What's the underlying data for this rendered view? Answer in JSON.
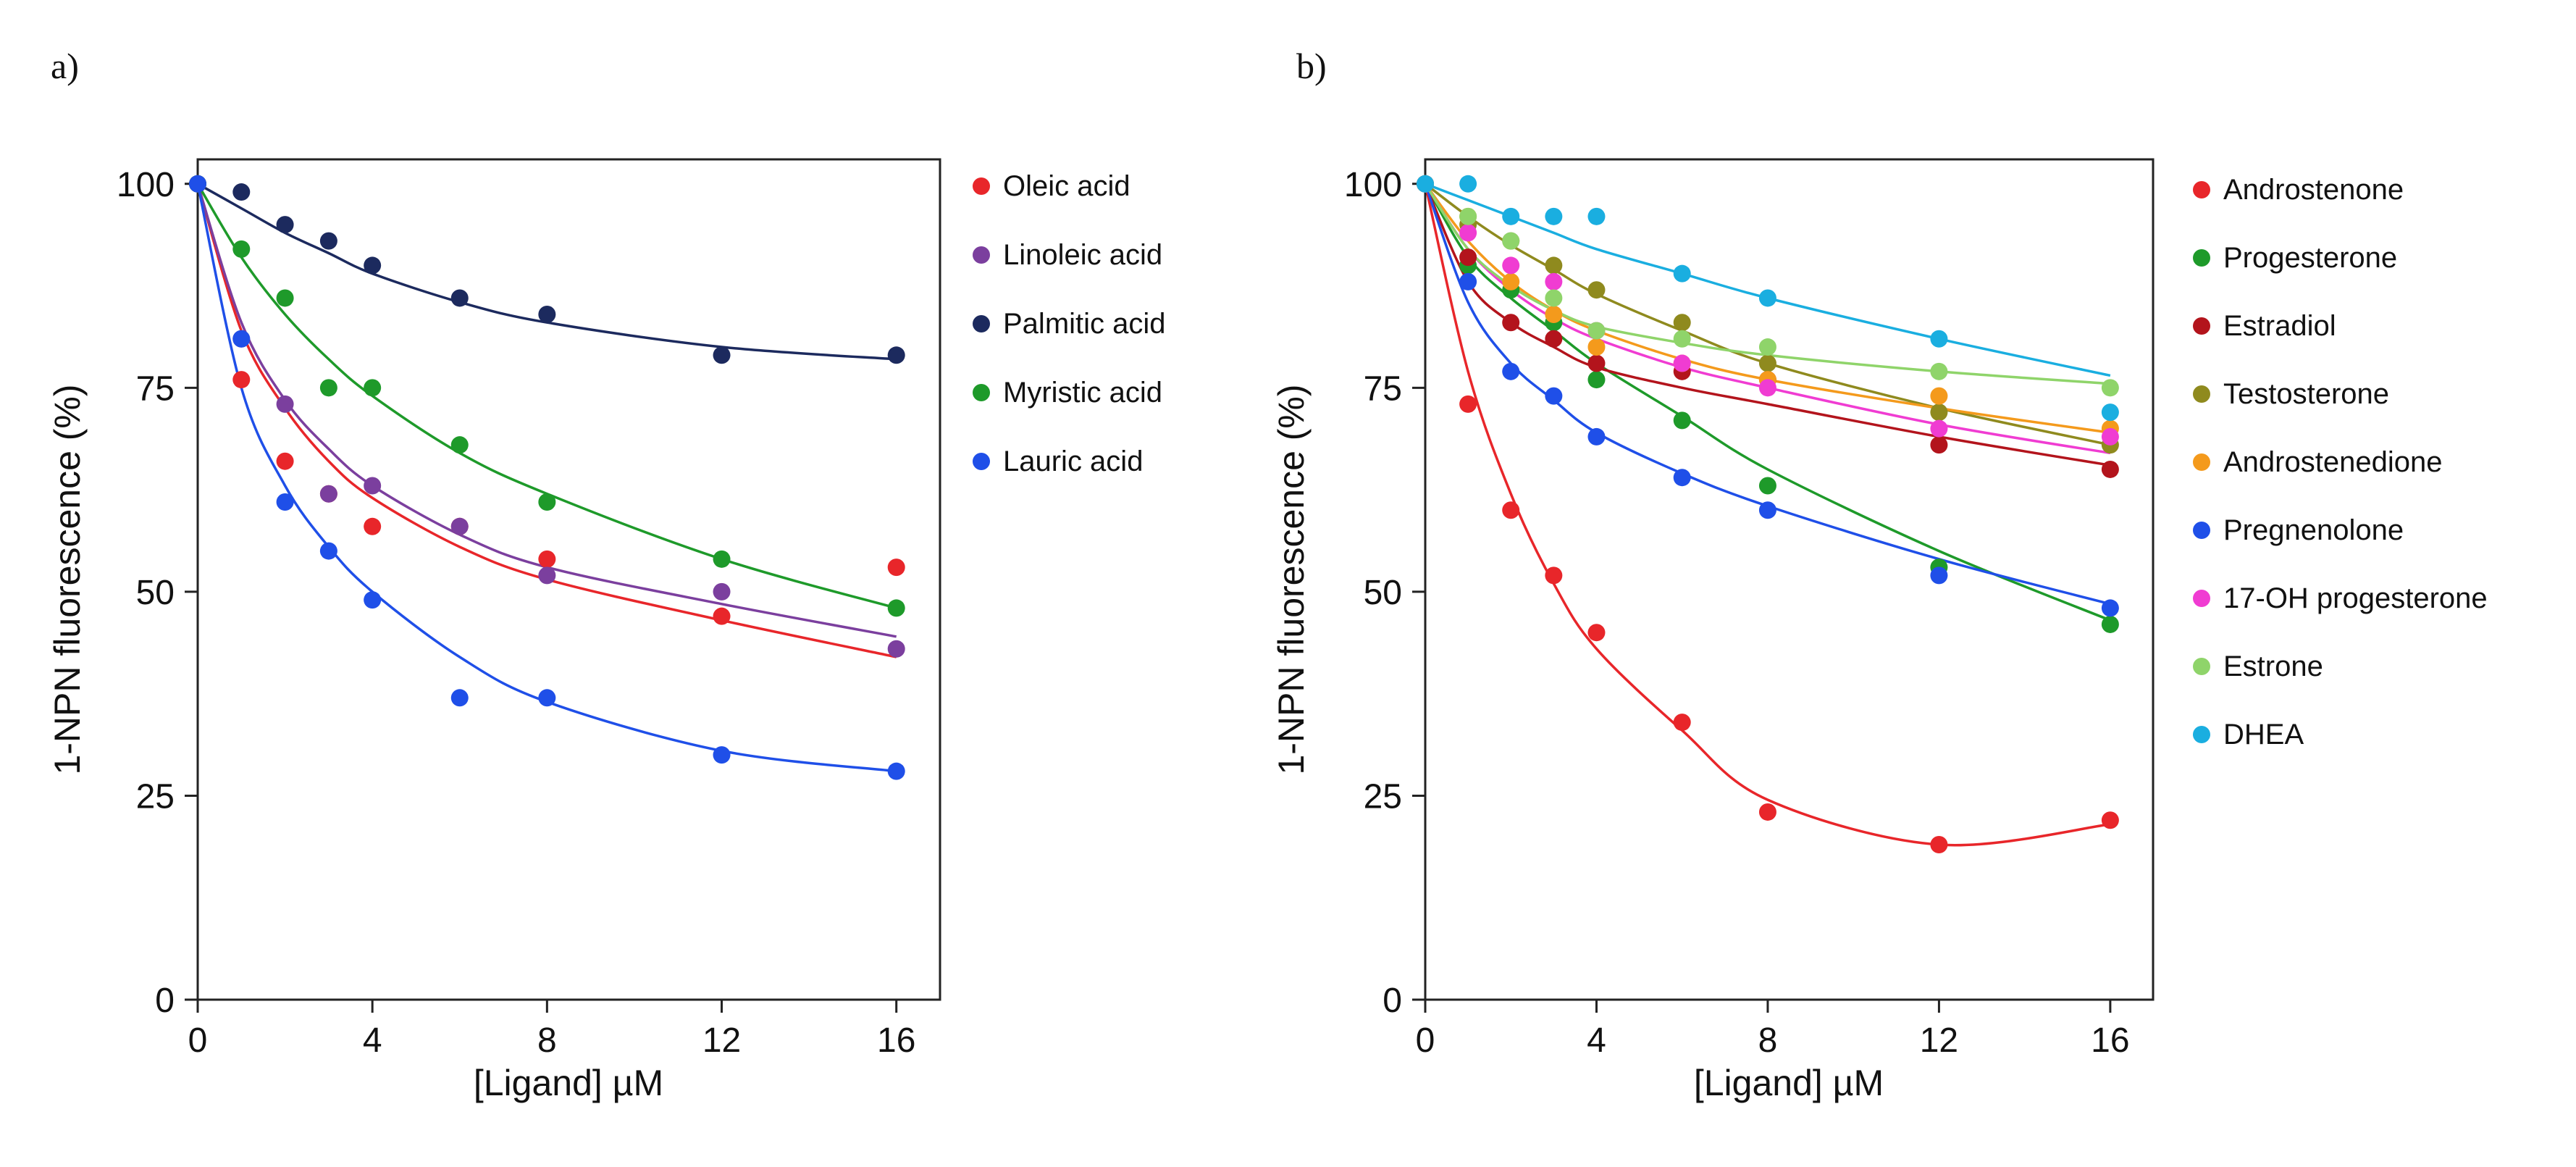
{
  "chart_data": [
    {
      "panel_label": "a)",
      "type": "scatter",
      "xlabel": "[Ligand] µM",
      "ylabel": "1-NPN fluorescence (%)",
      "xlim": [
        0,
        17
      ],
      "ylim": [
        0,
        103
      ],
      "xticks": [
        0,
        4,
        8,
        12,
        16
      ],
      "yticks": [
        0,
        25,
        50,
        75,
        100
      ],
      "legend_position": "right",
      "series": [
        {
          "name": "Oleic acid",
          "color": "#e8262a",
          "x": [
            0,
            1,
            2,
            3,
            4,
            6,
            8,
            12,
            16
          ],
          "y": [
            100,
            76,
            66,
            62,
            58,
            58,
            54,
            47,
            53
          ],
          "fit": [
            100,
            82,
            72.5,
            66,
            61.5,
            55.5,
            51.5,
            46.5,
            42
          ]
        },
        {
          "name": "Linoleic acid",
          "color": "#7b3f9e",
          "x": [
            0,
            1,
            2,
            3,
            4,
            6,
            8,
            12,
            16
          ],
          "y": [
            100,
            81,
            73,
            62,
            63,
            58,
            52,
            50,
            43
          ],
          "fit": [
            100,
            83,
            73.5,
            67.5,
            63,
            57,
            53,
            48.5,
            44.5
          ]
        },
        {
          "name": "Palmitic acid",
          "color": "#1c2a5e",
          "x": [
            0,
            1,
            2,
            3,
            4,
            6,
            8,
            12,
            16
          ],
          "y": [
            100,
            99,
            95,
            93,
            90,
            86,
            84,
            79,
            79
          ],
          "fit": [
            100,
            97,
            94,
            91.5,
            89,
            85.5,
            83,
            80,
            78.5
          ]
        },
        {
          "name": "Myristic acid",
          "color": "#1e9a2a",
          "x": [
            0,
            1,
            2,
            3,
            4,
            6,
            8,
            12,
            16
          ],
          "y": [
            100,
            92,
            86,
            75,
            75,
            68,
            61,
            54,
            48
          ],
          "fit": [
            100,
            91,
            84,
            78.5,
            74,
            67,
            62,
            54,
            48
          ]
        },
        {
          "name": "Lauric acid",
          "color": "#1f4fe8",
          "x": [
            0,
            1,
            2,
            3,
            4,
            6,
            8,
            12,
            16
          ],
          "y": [
            100,
            81,
            61,
            55,
            49,
            37,
            37,
            30,
            28
          ],
          "fit": [
            100,
            75,
            63,
            55.5,
            50,
            42,
            36.5,
            30.5,
            28
          ]
        }
      ]
    },
    {
      "panel_label": "b)",
      "type": "scatter",
      "xlabel": "[Ligand] µM",
      "ylabel": "1-NPN fluorescence (%)",
      "xlim": [
        0,
        17
      ],
      "ylim": [
        0,
        103
      ],
      "xticks": [
        0,
        4,
        8,
        12,
        16
      ],
      "yticks": [
        0,
        25,
        50,
        75,
        100
      ],
      "legend_position": "right",
      "series": [
        {
          "name": "Androstenone",
          "color": "#e8262a",
          "x": [
            0,
            1,
            2,
            3,
            4,
            6,
            8,
            12,
            16
          ],
          "y": [
            100,
            73,
            60,
            52,
            45,
            34,
            23,
            19,
            22
          ],
          "fit": [
            100,
            77,
            62,
            51,
            43,
            33,
            24.5,
            19,
            21.5
          ]
        },
        {
          "name": "Progesterone",
          "color": "#1e9a2a",
          "x": [
            0,
            1,
            2,
            3,
            4,
            6,
            8,
            12,
            16
          ],
          "y": [
            100,
            90,
            87,
            83,
            76,
            71,
            63,
            53,
            46
          ],
          "fit": [
            100,
            91,
            86,
            82,
            78,
            71.5,
            65,
            55,
            46.5
          ]
        },
        {
          "name": "Estradiol",
          "color": "#b3141c",
          "x": [
            0,
            1,
            2,
            3,
            4,
            6,
            8,
            12,
            16
          ],
          "y": [
            100,
            91,
            83,
            81,
            78,
            77,
            76,
            68,
            65
          ],
          "fit": [
            100,
            88,
            83,
            80,
            77.5,
            75,
            73,
            69,
            65.5
          ]
        },
        {
          "name": "Testosterone",
          "color": "#8f8a1e",
          "x": [
            0,
            1,
            2,
            3,
            4,
            6,
            8,
            12,
            16
          ],
          "y": [
            100,
            95,
            93,
            90,
            87,
            83,
            78,
            72,
            68
          ],
          "fit": [
            100,
            96,
            92.5,
            89.5,
            86.5,
            82,
            78,
            72.5,
            68
          ]
        },
        {
          "name": "Androstenedione",
          "color": "#f49a1c",
          "x": [
            0,
            1,
            2,
            3,
            4,
            6,
            8,
            12,
            16
          ],
          "y": [
            100,
            96,
            88,
            84,
            80,
            78,
            76,
            74,
            70
          ],
          "fit": [
            100,
            93,
            88,
            84.5,
            82,
            78.5,
            76,
            72.5,
            69.5
          ]
        },
        {
          "name": "Pregnenolone",
          "color": "#1f4fe8",
          "x": [
            0,
            1,
            2,
            3,
            4,
            6,
            8,
            12,
            16
          ],
          "y": [
            100,
            88,
            77,
            74,
            69,
            64,
            60,
            52,
            48
          ],
          "fit": [
            100,
            85.5,
            78,
            73.5,
            69.5,
            64.5,
            60.5,
            54,
            48.5
          ]
        },
        {
          "name": "17-OH progesterone",
          "color": "#f03cd2",
          "x": [
            0,
            1,
            2,
            3,
            4,
            6,
            8,
            12,
            16
          ],
          "y": [
            100,
            94,
            90,
            88,
            82,
            78,
            75,
            70,
            69
          ],
          "fit": [
            100,
            92,
            87,
            83.5,
            81,
            77.5,
            75,
            70.5,
            67
          ]
        },
        {
          "name": "Estrone",
          "color": "#8fd46a",
          "x": [
            0,
            1,
            2,
            3,
            4,
            6,
            8,
            12,
            16
          ],
          "y": [
            100,
            96,
            93,
            86,
            82,
            81,
            80,
            77,
            75
          ],
          "fit": [
            100,
            92,
            87.5,
            84.5,
            82.5,
            80.5,
            79,
            77,
            75.5
          ]
        },
        {
          "name": "DHEA",
          "color": "#1aaee0",
          "x": [
            0,
            1,
            2,
            3,
            4,
            6,
            8,
            12,
            16
          ],
          "y": [
            100,
            100,
            96,
            96,
            96,
            89,
            86,
            81,
            72
          ],
          "fit": [
            100,
            98,
            96,
            94,
            92,
            89,
            86,
            81,
            76.5
          ]
        }
      ]
    }
  ]
}
